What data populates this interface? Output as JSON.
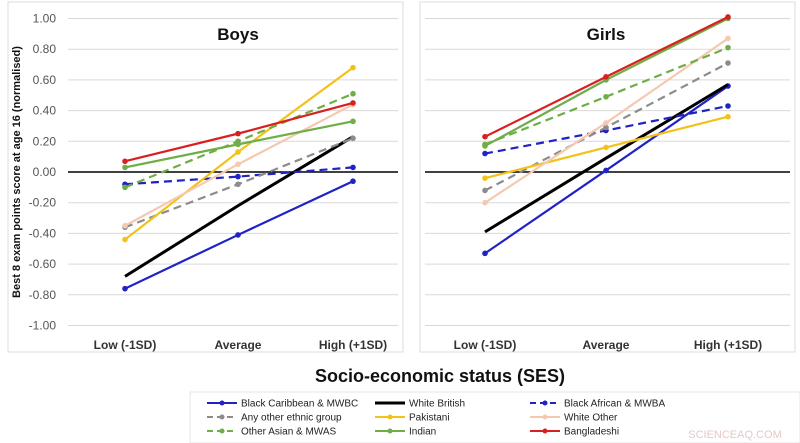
{
  "chart_data": {
    "type": "line",
    "ylabel": "Best 8 exam points score at age 16 (normalised)",
    "xlabel": "Socio-economic status (SES)",
    "ylim": [
      -1.0,
      1.0
    ],
    "yticks": [
      "1.00",
      "0.80",
      "0.60",
      "0.40",
      "0.20",
      "0.00",
      "-0.20",
      "-0.40",
      "-0.60",
      "-0.80",
      "-1.00"
    ],
    "categories": [
      "Low (-1SD)",
      "Average",
      "High (+1SD)"
    ],
    "grid": true,
    "legend_position": "bottom",
    "panels": [
      {
        "title": "Boys",
        "series": [
          {
            "name": "Black Caribbean & MWBC",
            "color": "#1f22c4",
            "dash": false,
            "values": [
              -0.76,
              -0.41,
              -0.06
            ]
          },
          {
            "name": "White British",
            "color": "#000000",
            "dash": false,
            "values": [
              -0.68,
              -0.22,
              0.23
            ]
          },
          {
            "name": "Black African & MWBA",
            "color": "#1f22c4",
            "dash": true,
            "values": [
              -0.08,
              -0.03,
              0.03
            ]
          },
          {
            "name": "Any other ethnic group",
            "color": "#8c8c8c",
            "dash": true,
            "values": [
              -0.36,
              -0.08,
              0.22
            ]
          },
          {
            "name": "Pakistani",
            "color": "#f2c218",
            "dash": false,
            "values": [
              -0.44,
              0.13,
              0.68
            ]
          },
          {
            "name": "White Other",
            "color": "#f5c9b0",
            "dash": false,
            "values": [
              -0.35,
              0.05,
              0.44
            ]
          },
          {
            "name": "Other Asian & MWAS",
            "color": "#6fad47",
            "dash": true,
            "values": [
              -0.1,
              0.2,
              0.51
            ]
          },
          {
            "name": "Indian",
            "color": "#6fad47",
            "dash": false,
            "values": [
              0.03,
              0.18,
              0.33
            ]
          },
          {
            "name": "Bangladeshi",
            "color": "#d92020",
            "dash": false,
            "values": [
              0.07,
              0.25,
              0.45
            ]
          }
        ]
      },
      {
        "title": "Girls",
        "series": [
          {
            "name": "Black Caribbean & MWBC",
            "color": "#1f22c4",
            "dash": false,
            "values": [
              -0.53,
              0.01,
              0.56
            ]
          },
          {
            "name": "White British",
            "color": "#000000",
            "dash": false,
            "values": [
              -0.39,
              0.09,
              0.57
            ]
          },
          {
            "name": "Black African & MWBA",
            "color": "#1f22c4",
            "dash": true,
            "values": [
              0.12,
              0.27,
              0.43
            ]
          },
          {
            "name": "Any other ethnic group",
            "color": "#8c8c8c",
            "dash": true,
            "values": [
              -0.12,
              0.29,
              0.71
            ]
          },
          {
            "name": "Pakistani",
            "color": "#f2c218",
            "dash": false,
            "values": [
              -0.04,
              0.16,
              0.36
            ]
          },
          {
            "name": "White Other",
            "color": "#f5c9b0",
            "dash": false,
            "values": [
              -0.2,
              0.32,
              0.87
            ]
          },
          {
            "name": "Other Asian & MWAS",
            "color": "#6fad47",
            "dash": true,
            "values": [
              0.18,
              0.49,
              0.81
            ]
          },
          {
            "name": "Indian",
            "color": "#6fad47",
            "dash": false,
            "values": [
              0.17,
              0.6,
              1.0
            ]
          },
          {
            "name": "Bangladeshi",
            "color": "#d92020",
            "dash": false,
            "values": [
              0.23,
              0.62,
              1.01
            ]
          }
        ]
      }
    ]
  },
  "watermark": "SCIENCEAQ.COM"
}
